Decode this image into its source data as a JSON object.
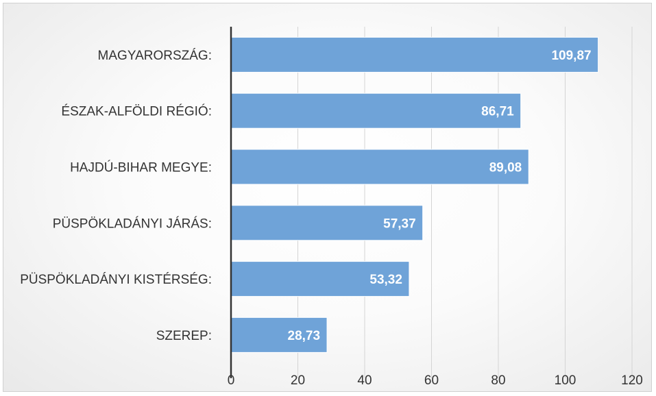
{
  "chart_data": {
    "type": "bar",
    "orientation": "horizontal",
    "categories": [
      "MAGYARORSZÁG:",
      "ÉSZAK-ALFÖLDI RÉGIÓ:",
      "HAJDÚ-BIHAR MEGYE:",
      "PÜSPÖKLADÁNYI JÁRÁS:",
      "PÜSPÖKLADÁNYI KISTÉRSÉG:",
      "SZEREP:"
    ],
    "values": [
      109.87,
      86.71,
      89.08,
      57.37,
      53.32,
      28.73
    ],
    "data_labels": [
      "109,87",
      "86,71",
      "89,08",
      "57,37",
      "53,32",
      "28,73"
    ],
    "title": "",
    "xlabel": "",
    "ylabel": "",
    "xlim": [
      0,
      120
    ],
    "ticks": [
      0,
      20,
      40,
      60,
      80,
      100,
      120
    ],
    "tick_labels": [
      "0",
      "20",
      "40",
      "60",
      "80",
      "100",
      "120"
    ],
    "grid": "vertical",
    "legend": "none",
    "bar_color": "#6fa3d8",
    "bar_border_color": "#ffffff",
    "axis_color": "#333333",
    "grid_color": "#d4d4d4"
  }
}
